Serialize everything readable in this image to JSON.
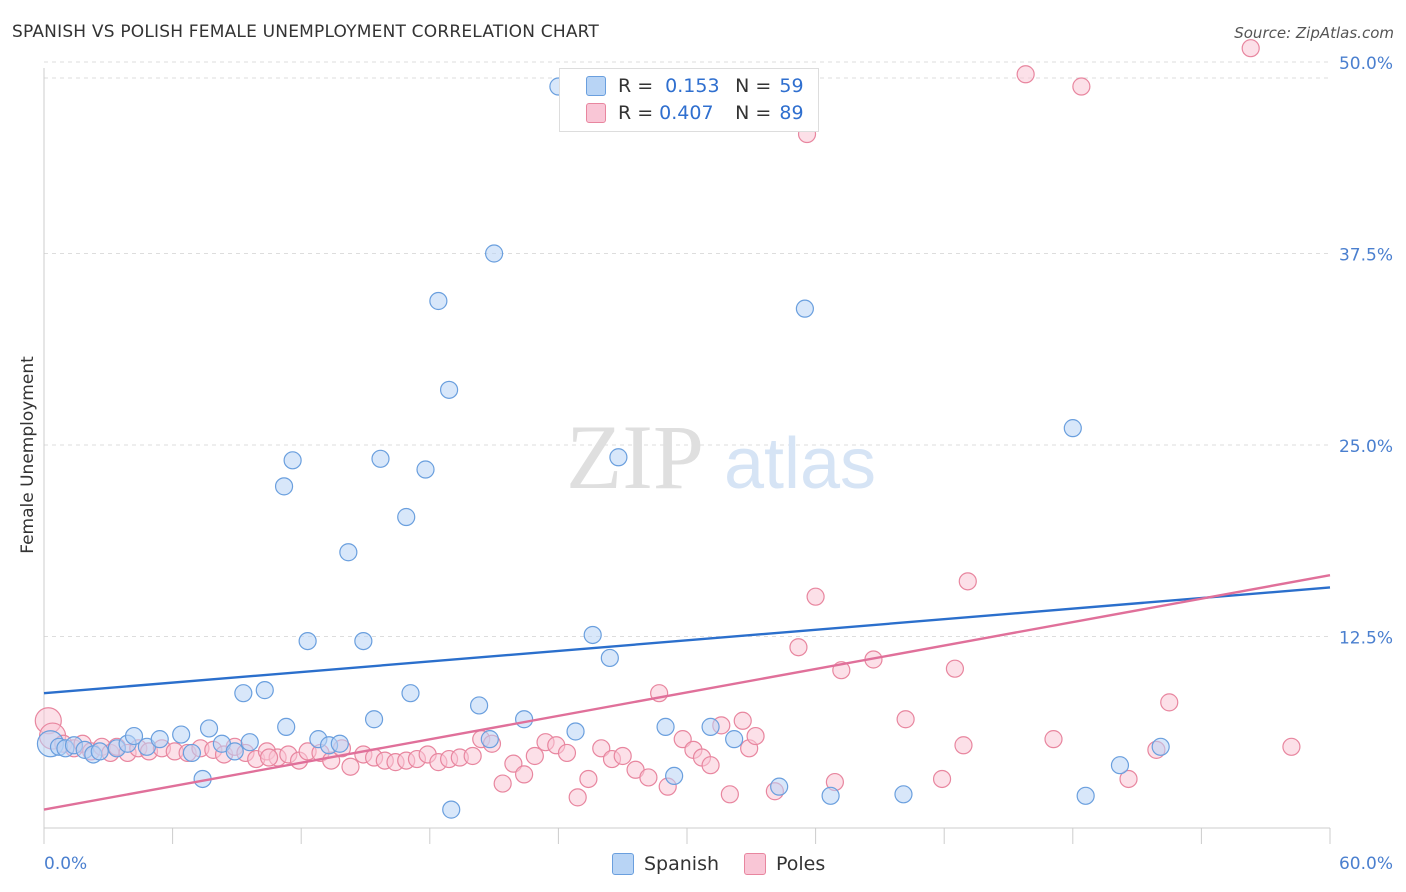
{
  "header": {
    "title": "SPANISH VS POLISH FEMALE UNEMPLOYMENT CORRELATION CHART",
    "source": "Source: ZipAtlas.com"
  },
  "watermark": {
    "zip": "ZIP",
    "atlas": "atlas"
  },
  "legend": {
    "r_label": "R =",
    "n_label": "N =",
    "rows": [
      {
        "r": "0.153",
        "n": "59"
      },
      {
        "r": "0.407",
        "n": "89"
      }
    ]
  },
  "colors": {
    "spanish_fill": "#b8d4f5",
    "spanish_stroke": "#6a9fde",
    "spanish_line": "#2b6fcc",
    "poles_fill": "#f9c6d6",
    "poles_stroke": "#e8869f",
    "poles_line": "#e0709a",
    "grid": "#dddddd",
    "axis_label": "#4a7fcf"
  },
  "chart_data": {
    "type": "scatter",
    "title": "SPANISH VS POLISH FEMALE UNEMPLOYMENT CORRELATION CHART",
    "xlabel": "",
    "ylabel": "Female Unemployment",
    "xlim": [
      0,
      60
    ],
    "ylim": [
      0,
      52
    ],
    "x_tick_labels": [
      "0.0%",
      "60.0%"
    ],
    "y_ticks": [
      12.5,
      25.0,
      37.5,
      50.0
    ],
    "y_tick_labels": [
      "12.5%",
      "25.0%",
      "37.5%",
      "50.0%"
    ],
    "grid": true,
    "legend_position": "top-center",
    "series": [
      {
        "name": "Spanish",
        "r": 0.153,
        "n": 59,
        "trend": [
          [
            0,
            8.8
          ],
          [
            60,
            15.7
          ]
        ],
        "points": [
          [
            0.3,
            5.5
          ],
          [
            0.7,
            5.3
          ],
          [
            1.0,
            5.2
          ],
          [
            1.4,
            5.4
          ],
          [
            1.9,
            5.1
          ],
          [
            2.3,
            4.8
          ],
          [
            2.6,
            5.0
          ],
          [
            3.4,
            5.2
          ],
          [
            3.9,
            5.5
          ],
          [
            4.2,
            6.0
          ],
          [
            4.8,
            5.3
          ],
          [
            5.4,
            5.8
          ],
          [
            6.4,
            6.1
          ],
          [
            6.9,
            4.9
          ],
          [
            7.4,
            3.2
          ],
          [
            7.7,
            6.5
          ],
          [
            8.3,
            5.5
          ],
          [
            8.9,
            5.0
          ],
          [
            9.3,
            8.8
          ],
          [
            9.6,
            5.6
          ],
          [
            10.3,
            9.0
          ],
          [
            11.2,
            22.3
          ],
          [
            11.3,
            6.6
          ],
          [
            11.6,
            24.0
          ],
          [
            12.3,
            12.2
          ],
          [
            12.8,
            5.8
          ],
          [
            13.3,
            5.4
          ],
          [
            13.8,
            5.5
          ],
          [
            14.2,
            18.0
          ],
          [
            14.9,
            12.2
          ],
          [
            15.4,
            7.1
          ],
          [
            15.7,
            24.1
          ],
          [
            16.9,
            20.3
          ],
          [
            17.1,
            8.8
          ],
          [
            17.8,
            23.4
          ],
          [
            18.4,
            34.4
          ],
          [
            18.9,
            28.6
          ],
          [
            19.0,
            1.2
          ],
          [
            20.3,
            8.0
          ],
          [
            20.8,
            5.8
          ],
          [
            21.0,
            37.5
          ],
          [
            22.4,
            7.1
          ],
          [
            24.0,
            48.4
          ],
          [
            24.8,
            6.3
          ],
          [
            25.6,
            12.6
          ],
          [
            26.4,
            11.1
          ],
          [
            26.8,
            24.2
          ],
          [
            29.0,
            6.6
          ],
          [
            29.4,
            3.4
          ],
          [
            31.1,
            6.6
          ],
          [
            32.2,
            5.8
          ],
          [
            34.3,
            2.7
          ],
          [
            35.5,
            33.9
          ],
          [
            36.7,
            2.1
          ],
          [
            40.1,
            2.2
          ],
          [
            48.0,
            26.1
          ],
          [
            48.6,
            2.1
          ],
          [
            50.2,
            4.1
          ],
          [
            52.1,
            5.3
          ]
        ]
      },
      {
        "name": "Poles",
        "r": 0.407,
        "n": 89,
        "trend": [
          [
            0,
            1.2
          ],
          [
            60,
            16.5
          ]
        ],
        "points": [
          [
            0.2,
            7.0
          ],
          [
            0.4,
            6.0
          ],
          [
            0.9,
            5.5
          ],
          [
            1.4,
            5.2
          ],
          [
            1.8,
            5.5
          ],
          [
            2.2,
            5.0
          ],
          [
            2.7,
            5.3
          ],
          [
            3.1,
            4.9
          ],
          [
            3.4,
            5.3
          ],
          [
            3.9,
            4.9
          ],
          [
            4.4,
            5.2
          ],
          [
            4.9,
            5.0
          ],
          [
            5.5,
            5.2
          ],
          [
            6.1,
            5.0
          ],
          [
            6.7,
            4.9
          ],
          [
            7.3,
            5.2
          ],
          [
            7.9,
            5.1
          ],
          [
            8.4,
            4.8
          ],
          [
            8.9,
            5.3
          ],
          [
            9.4,
            4.9
          ],
          [
            9.9,
            4.5
          ],
          [
            10.4,
            5.0
          ],
          [
            10.9,
            4.6
          ],
          [
            11.4,
            4.8
          ],
          [
            11.9,
            4.4
          ],
          [
            12.3,
            5.0
          ],
          [
            12.9,
            4.9
          ],
          [
            13.4,
            4.4
          ],
          [
            13.9,
            5.2
          ],
          [
            14.3,
            4.0
          ],
          [
            14.9,
            4.8
          ],
          [
            15.4,
            4.6
          ],
          [
            15.9,
            4.4
          ],
          [
            16.4,
            4.3
          ],
          [
            16.9,
            4.4
          ],
          [
            17.4,
            4.5
          ],
          [
            17.9,
            4.8
          ],
          [
            18.4,
            4.3
          ],
          [
            18.9,
            4.5
          ],
          [
            19.4,
            4.6
          ],
          [
            20.0,
            4.7
          ],
          [
            20.4,
            5.8
          ],
          [
            20.9,
            5.5
          ],
          [
            21.4,
            2.9
          ],
          [
            21.9,
            4.2
          ],
          [
            22.4,
            3.5
          ],
          [
            22.9,
            4.7
          ],
          [
            23.4,
            5.6
          ],
          [
            23.9,
            5.4
          ],
          [
            24.4,
            4.9
          ],
          [
            24.9,
            2.0
          ],
          [
            25.4,
            3.2
          ],
          [
            26.0,
            5.2
          ],
          [
            26.5,
            4.5
          ],
          [
            27.0,
            4.7
          ],
          [
            27.6,
            3.8
          ],
          [
            28.2,
            3.3
          ],
          [
            28.7,
            8.8
          ],
          [
            29.1,
            2.7
          ],
          [
            29.8,
            5.8
          ],
          [
            30.3,
            5.1
          ],
          [
            30.7,
            4.6
          ],
          [
            31.1,
            4.1
          ],
          [
            31.6,
            6.7
          ],
          [
            32.0,
            2.2
          ],
          [
            32.6,
            7.0
          ],
          [
            32.9,
            5.2
          ],
          [
            33.2,
            6.0
          ],
          [
            34.1,
            2.4
          ],
          [
            35.2,
            11.8
          ],
          [
            35.6,
            45.3
          ],
          [
            36.0,
            15.1
          ],
          [
            36.9,
            3.0
          ],
          [
            37.2,
            10.3
          ],
          [
            38.7,
            11.0
          ],
          [
            40.2,
            7.1
          ],
          [
            41.9,
            3.2
          ],
          [
            42.5,
            10.4
          ],
          [
            42.9,
            5.4
          ],
          [
            43.1,
            16.1
          ],
          [
            45.8,
            49.2
          ],
          [
            47.1,
            5.8
          ],
          [
            48.4,
            48.4
          ],
          [
            50.6,
            3.2
          ],
          [
            51.9,
            5.1
          ],
          [
            52.5,
            8.2
          ],
          [
            58.2,
            5.3
          ],
          [
            56.3,
            50.9
          ],
          [
            10.5,
            4.6
          ]
        ]
      }
    ]
  }
}
